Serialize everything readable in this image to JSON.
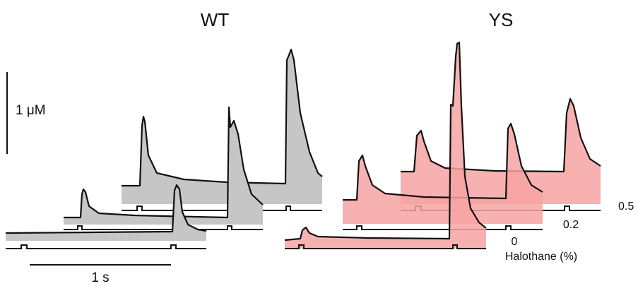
{
  "panels": {
    "wt": {
      "title": "WT",
      "fill_color": "#c6c6c6",
      "traces": [
        {
          "condition": "0",
          "peak_first": 0.15,
          "peak_second": 0.9
        },
        {
          "condition": "0.2",
          "peak_first": 0.25,
          "peak_second": 0.5
        },
        {
          "condition": "0.5",
          "peak_first": 0.4,
          "peak_second": 1.1
        }
      ]
    },
    "ys": {
      "title": "YS",
      "fill_color": "#f7a3a3",
      "traces": [
        {
          "condition": "0",
          "peak_first": 0.15,
          "peak_second": 1.1
        },
        {
          "condition": "0.2",
          "peak_first": 0.35,
          "peak_second": 0.6
        },
        {
          "condition": "0.5",
          "peak_first": 0.45,
          "peak_second": 0.55
        }
      ]
    }
  },
  "scale_bars": {
    "concentration": "1 μM",
    "time": "1 s"
  },
  "halothane": {
    "axis_label": "Halothane (%)",
    "levels": [
      "0",
      "0.2",
      "0.5"
    ]
  }
}
